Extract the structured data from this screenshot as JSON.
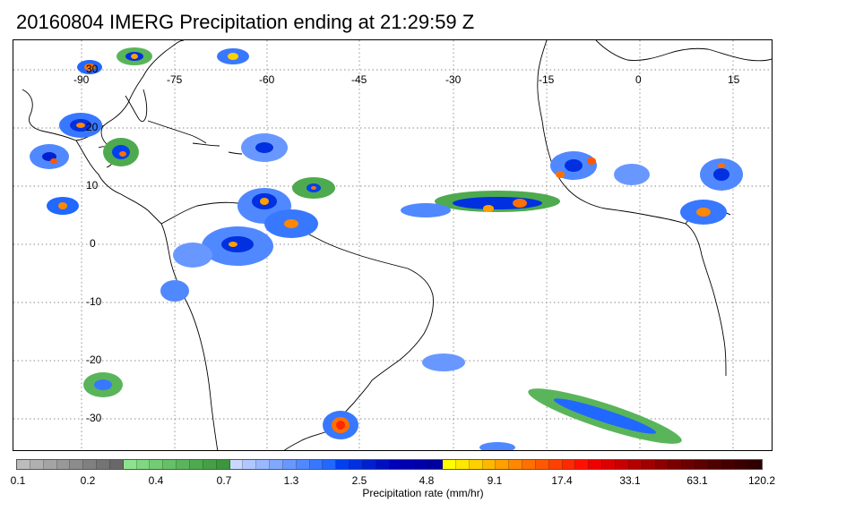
{
  "title": "20160804 IMERG Precipitation ending at 21:29:59 Z",
  "map": {
    "lon_labels": [
      "-90",
      "-75",
      "-60",
      "-45",
      "-30",
      "-15",
      "0",
      "15"
    ],
    "lat_labels": [
      "30",
      "20",
      "10",
      "0",
      "-10",
      "-20",
      "-30"
    ]
  },
  "colorbar": {
    "label": "Precipitation rate (mm/hr)",
    "tick_labels": [
      "0.1",
      "0.2",
      "0.4",
      "0.7",
      "1.3",
      "2.5",
      "4.8",
      "9.1",
      "17.4",
      "33.1",
      "63.1",
      "120.2"
    ],
    "colors": [
      "#bcbcbc",
      "#b0b0b0",
      "#a4a4a4",
      "#989898",
      "#8c8c8c",
      "#808080",
      "#747474",
      "#686868",
      "#8de38d",
      "#7fd87f",
      "#72cc72",
      "#66c166",
      "#5ab55a",
      "#4eaa4e",
      "#45a045",
      "#3c963c",
      "#c8d8ff",
      "#b0c8ff",
      "#98b8ff",
      "#80a8ff",
      "#6898ff",
      "#5088ff",
      "#3878ff",
      "#2068ff",
      "#0040f0",
      "#0030e0",
      "#0020d0",
      "#0010c0",
      "#0000b8",
      "#0000b0",
      "#0000a8",
      "#0000a0",
      "#ffff00",
      "#ffe800",
      "#ffd000",
      "#ffb800",
      "#ffa000",
      "#ff8800",
      "#ff7000",
      "#ff5800",
      "#ff4000",
      "#ff2800",
      "#ff1000",
      "#f00000",
      "#dd0000",
      "#c80000",
      "#b40000",
      "#a00000",
      "#8c0000",
      "#7a0000",
      "#6a0000",
      "#5c0000",
      "#500000",
      "#440000",
      "#3a0000",
      "#300000"
    ]
  }
}
